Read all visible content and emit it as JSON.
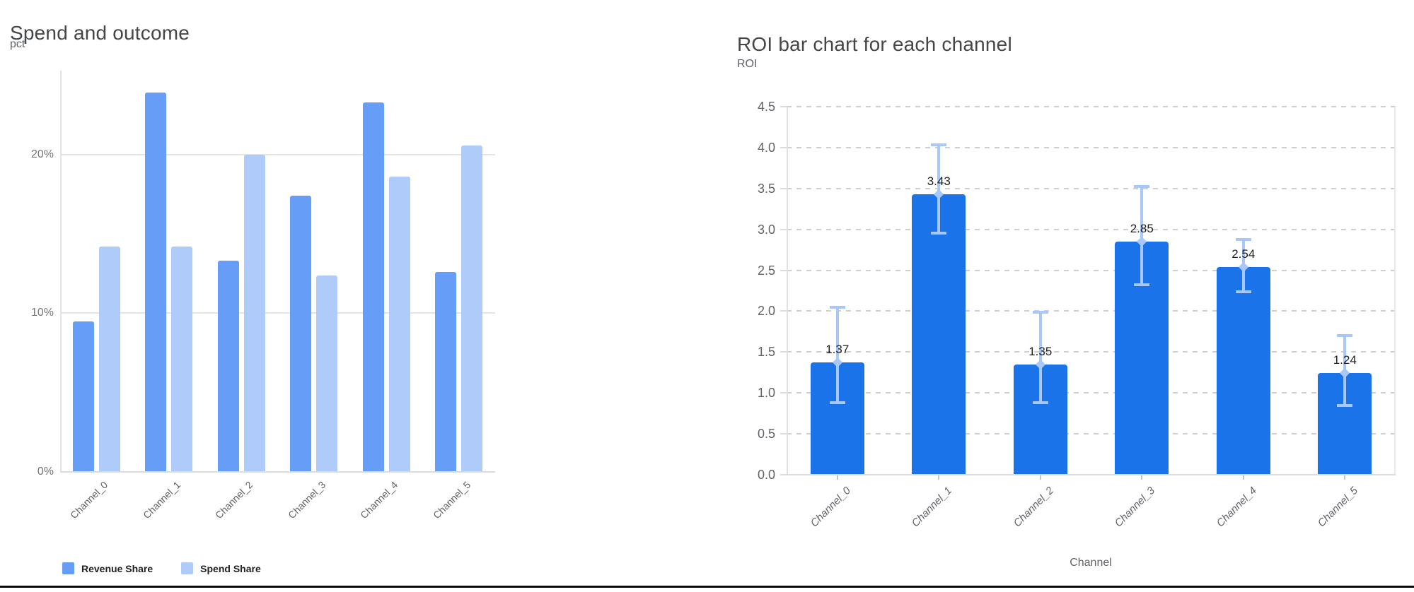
{
  "chart_data": [
    {
      "type": "bar",
      "title": "Spend and outcome",
      "unit_label": "pct",
      "categories": [
        "Channel_0",
        "Channel_1",
        "Channel_2",
        "Channel_3",
        "Channel_4",
        "Channel_5"
      ],
      "series": [
        {
          "name": "Revenue Share",
          "color": "#669DF6",
          "values": [
            9.5,
            23.9,
            13.3,
            17.4,
            23.3,
            12.6
          ]
        },
        {
          "name": "Spend Share",
          "color": "#AECBFA",
          "values": [
            14.2,
            14.2,
            20.0,
            12.4,
            18.6,
            20.6
          ]
        }
      ],
      "y_axis": {
        "max": 25.3,
        "ticks": [
          {
            "value": 0,
            "label": "0%"
          },
          {
            "value": 10,
            "label": "10%"
          },
          {
            "value": 20,
            "label": "20%"
          }
        ]
      },
      "grid": "solid",
      "legend_position": "bottom"
    },
    {
      "type": "bar",
      "title": "ROI bar chart for each channel",
      "ylabel": "ROI",
      "xlabel": "Channel",
      "categories": [
        "Channel_0",
        "Channel_1",
        "Channel_2",
        "Channel_3",
        "Channel_4",
        "Channel_5"
      ],
      "values": [
        1.37,
        3.43,
        1.35,
        2.85,
        2.54,
        1.24
      ],
      "value_labels": [
        "1.37",
        "3.43",
        "1.35",
        "2.85",
        "2.54",
        "1.24"
      ],
      "error_low": [
        0.88,
        2.95,
        0.88,
        2.32,
        2.24,
        0.85
      ],
      "error_high": [
        2.05,
        4.03,
        1.99,
        3.52,
        2.88,
        1.7
      ],
      "bar_color": "#1A73E8",
      "error_bar_color": "#A8C7FA",
      "y_axis": {
        "max": 4.5,
        "ticks": [
          {
            "value": 0.0,
            "label": "0.0"
          },
          {
            "value": 0.5,
            "label": "0.5"
          },
          {
            "value": 1.0,
            "label": "1.0"
          },
          {
            "value": 1.5,
            "label": "1.5"
          },
          {
            "value": 2.0,
            "label": "2.0"
          },
          {
            "value": 2.5,
            "label": "2.5"
          },
          {
            "value": 3.0,
            "label": "3.0"
          },
          {
            "value": 3.5,
            "label": "3.5"
          },
          {
            "value": 4.0,
            "label": "4.0"
          },
          {
            "value": 4.5,
            "label": "4.5"
          }
        ]
      },
      "grid": "dashed",
      "legend_position": "none"
    }
  ]
}
